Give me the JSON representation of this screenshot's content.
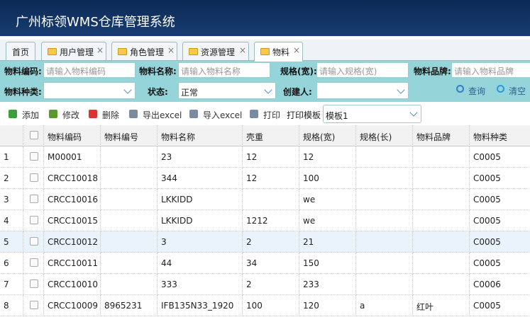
{
  "header": {
    "title": "广州标领WMS仓库管理系统"
  },
  "tabs": [
    "首页",
    "用户管理",
    "角色管理",
    "资源管理",
    "物料"
  ],
  "filters": {
    "row1": [
      {
        "label": "物料编码:",
        "placeholder": "请输入物料编码"
      },
      {
        "label": "物料名称:",
        "placeholder": "请输入物料名称"
      },
      {
        "label": "规格(宽):",
        "placeholder": "请输入规格(宽)"
      },
      {
        "label": "物料品牌:",
        "placeholder": "请输入物料品牌"
      }
    ],
    "row2": [
      {
        "label": "物料种类:"
      },
      {
        "label": "状态:",
        "value": "正常"
      },
      {
        "label": "创建人:"
      }
    ],
    "buttons": [
      "查询",
      "清空"
    ]
  },
  "toolbar": {
    "buttons": [
      "添加",
      "修改",
      "删除",
      "导出excel",
      "导入excel",
      "打印"
    ],
    "template_label": "打印模板",
    "template_value": "模板1"
  },
  "table": {
    "columns": [
      "物料编码",
      "物料编号",
      "物料名称",
      "壳重",
      "规格(宽)",
      "规格(长)",
      "物料品牌",
      "物料种类"
    ],
    "rows": [
      {
        "index": 1,
        "cells": [
          "M00001",
          null,
          "23",
          "12",
          "12",
          null,
          null,
          "C0005"
        ]
      },
      {
        "index": 2,
        "cells": [
          "CRCC10018",
          null,
          "344",
          "12",
          "100",
          null,
          null,
          "C0005"
        ]
      },
      {
        "index": 3,
        "cells": [
          "CRCC10016",
          null,
          "LKKIDD",
          null,
          "we",
          null,
          null,
          "C0005"
        ]
      },
      {
        "index": 4,
        "cells": [
          "CRCC10015",
          null,
          "LKKIDD",
          "1212",
          "we",
          null,
          null,
          "C0005"
        ]
      },
      {
        "index": 5,
        "cells": [
          "CRCC10012",
          null,
          "3",
          "2",
          "21",
          null,
          null,
          "C0005"
        ]
      },
      {
        "index": 6,
        "cells": [
          "CRCC10011",
          null,
          "44",
          "34",
          "150",
          null,
          null,
          "C0005"
        ]
      },
      {
        "index": 7,
        "cells": [
          "CRCC10010",
          null,
          "333",
          "2",
          "233",
          null,
          null,
          "C0006"
        ]
      },
      {
        "index": 8,
        "cells": [
          "CRCC10009",
          "8965231",
          "IFB135N33_1920",
          "100",
          "120",
          "a",
          "红叶",
          "C0005"
        ]
      }
    ]
  }
}
